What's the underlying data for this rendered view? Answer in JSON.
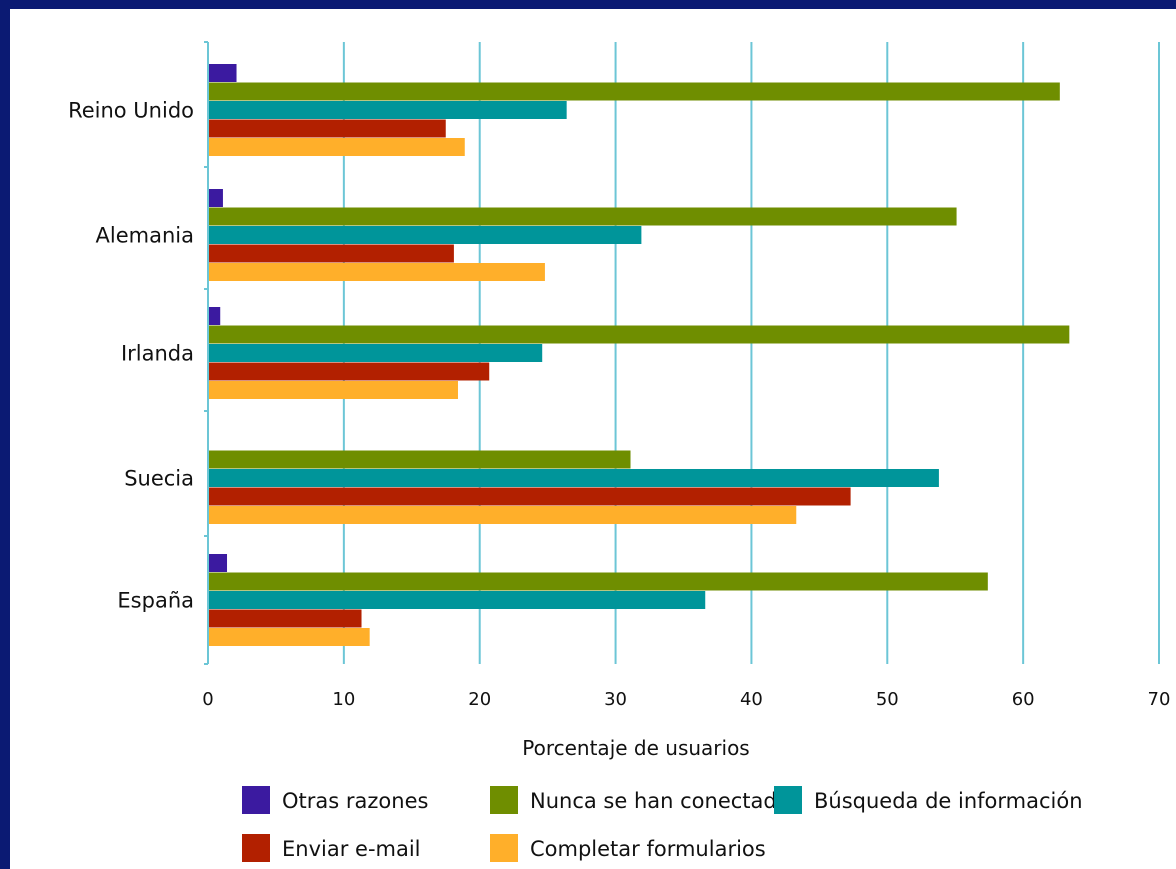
{
  "chart_data": {
    "type": "bar",
    "orientation": "horizontal",
    "categories": [
      "Reino Unido",
      "Alemania",
      "Irlanda",
      "Suecia",
      "España"
    ],
    "series": [
      {
        "name": "Otras razones",
        "color": "#3b1aa0",
        "values": [
          2.1,
          1.1,
          0.9,
          0,
          1.4
        ]
      },
      {
        "name": "Nunca se han conectado",
        "color": "#6f8e00",
        "values": [
          62.7,
          55.1,
          63.4,
          31.1,
          57.4
        ]
      },
      {
        "name": "Búsqueda de información",
        "color": "#00959a",
        "values": [
          26.4,
          31.9,
          24.6,
          53.8,
          36.6
        ]
      },
      {
        "name": "Enviar e-mail",
        "color": "#b22000",
        "values": [
          17.5,
          18.1,
          20.7,
          47.3,
          11.3
        ]
      },
      {
        "name": "Completar formularios",
        "color": "#ffaf2a",
        "values": [
          18.9,
          24.8,
          18.4,
          43.3,
          11.9
        ]
      }
    ],
    "xlim": [
      0,
      70
    ],
    "ticks": [
      "0",
      "10",
      "20",
      "30",
      "40",
      "50",
      "60",
      "70"
    ],
    "xlabel": "Porcentaje de usuarios",
    "grid": true,
    "legend_position": "bottom",
    "gridline_color": "#6cc6d6",
    "background_color": "#ffffff",
    "frame_color": "#0b1a73"
  }
}
